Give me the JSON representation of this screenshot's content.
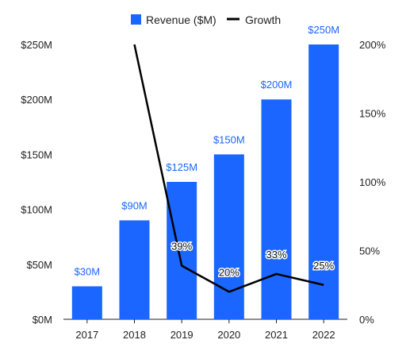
{
  "chart_data": {
    "type": "bar",
    "categories": [
      "2017",
      "2018",
      "2019",
      "2020",
      "2021",
      "2022"
    ],
    "series": [
      {
        "name": "Revenue ($M)",
        "type": "bar",
        "axis": "left",
        "values": [
          30,
          90,
          125,
          150,
          200,
          250
        ],
        "labels": [
          "$30M",
          "$90M",
          "$125M",
          "$150M",
          "$200M",
          "$250M"
        ],
        "color": "#1a66ff"
      },
      {
        "name": "Growth",
        "type": "line",
        "axis": "right",
        "values": [
          null,
          200,
          39,
          20,
          33,
          25
        ],
        "labels": [
          null,
          null,
          "39%",
          "20%",
          "33%",
          "25%"
        ],
        "color": "#000000"
      }
    ],
    "y_left": {
      "ylim": [
        0,
        250
      ],
      "ticks": [
        0,
        50,
        100,
        150,
        200,
        250
      ],
      "tick_labels": [
        "$0M",
        "$50M",
        "$100M",
        "$150M",
        "$200M",
        "$250M"
      ]
    },
    "y_right": {
      "ylim": [
        0,
        200
      ],
      "ticks": [
        0,
        50,
        100,
        150,
        200
      ],
      "tick_labels": [
        "0%",
        "50%",
        "100%",
        "150%",
        "200%"
      ]
    },
    "legend_position": "top",
    "grid": false,
    "colors": {
      "bar": "#1a66ff",
      "line": "#000000",
      "bar_label": "#1a66ff",
      "axis": "#222222"
    }
  }
}
